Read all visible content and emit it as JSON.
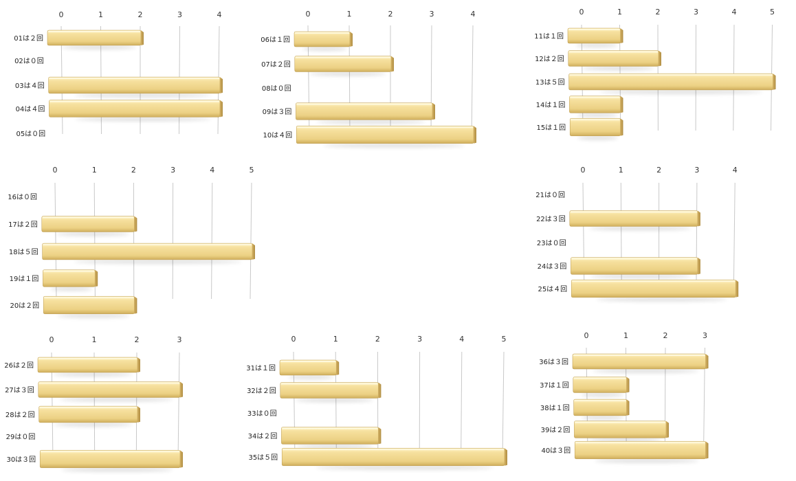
{
  "chart_data": [
    {
      "type": "bar",
      "orientation": "horizontal",
      "categories": [
        "01は２回",
        "02は０回",
        "03は４回",
        "04は４回",
        "05は０回"
      ],
      "values": [
        2,
        0,
        4,
        4,
        0
      ],
      "xlim": [
        0,
        4
      ],
      "ticks": [
        "0",
        "1",
        "2",
        "3",
        "4"
      ]
    },
    {
      "type": "bar",
      "orientation": "horizontal",
      "categories": [
        "06は１回",
        "07は２回",
        "08は０回",
        "09は３回",
        "10は４回"
      ],
      "values": [
        1,
        2,
        0,
        3,
        4
      ],
      "xlim": [
        0,
        4
      ],
      "ticks": [
        "0",
        "1",
        "2",
        "3",
        "4"
      ]
    },
    {
      "type": "bar",
      "orientation": "horizontal",
      "categories": [
        "11は１回",
        "12は２回",
        "13は５回",
        "14は１回",
        "15は１回"
      ],
      "values": [
        1,
        2,
        5,
        1,
        1
      ],
      "xlim": [
        0,
        5
      ],
      "ticks": [
        "0",
        "1",
        "2",
        "3",
        "4",
        "5"
      ]
    },
    {
      "type": "bar",
      "orientation": "horizontal",
      "categories": [
        "16は０回",
        "17は２回",
        "18は５回",
        "19は１回",
        "20は２回"
      ],
      "values": [
        0,
        2,
        5,
        1,
        2
      ],
      "xlim": [
        0,
        5
      ],
      "ticks": [
        "0",
        "1",
        "2",
        "3",
        "4",
        "5"
      ]
    },
    {
      "type": "bar",
      "orientation": "horizontal",
      "categories": [
        "21は０回",
        "22は３回",
        "23は０回",
        "24は３回",
        "25は４回"
      ],
      "values": [
        0,
        3,
        0,
        3,
        4
      ],
      "xlim": [
        0,
        4
      ],
      "ticks": [
        "0",
        "1",
        "2",
        "3",
        "4"
      ]
    },
    {
      "type": "bar",
      "orientation": "horizontal",
      "categories": [
        "26は２回",
        "27は３回",
        "28は２回",
        "29は０回",
        "30は３回"
      ],
      "values": [
        2,
        3,
        2,
        0,
        3
      ],
      "xlim": [
        0,
        3
      ],
      "ticks": [
        "0",
        "1",
        "2",
        "3"
      ]
    },
    {
      "type": "bar",
      "orientation": "horizontal",
      "categories": [
        "31は１回",
        "32は２回",
        "33は０回",
        "34は２回",
        "35は５回"
      ],
      "values": [
        1,
        2,
        0,
        2,
        5
      ],
      "xlim": [
        0,
        5
      ],
      "ticks": [
        "0",
        "1",
        "2",
        "3",
        "4",
        "5"
      ]
    },
    {
      "type": "bar",
      "orientation": "horizontal",
      "categories": [
        "36は３回",
        "37は１回",
        "38は１回",
        "39は２回",
        "40は３回"
      ],
      "values": [
        3,
        1,
        1,
        2,
        3
      ],
      "xlim": [
        0,
        3
      ],
      "ticks": [
        "0",
        "1",
        "2",
        "3"
      ]
    }
  ],
  "colors": {
    "bar_top": "#fbe7a6",
    "bar_mid": "#f1d486",
    "bar_bottom": "#d9b765",
    "bar_edge": "#b9974a",
    "grid": "#c8c8c8"
  }
}
